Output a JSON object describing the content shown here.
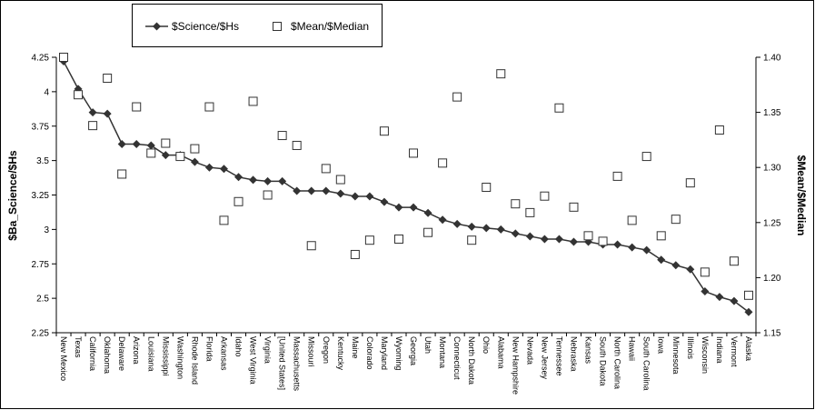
{
  "chart_data": {
    "type": "line",
    "categories": [
      "New Mexico",
      "Texas",
      "California",
      "Oklahoma",
      "Delaware",
      "Arizona",
      "Louisiana",
      "Mississippi",
      "Washington",
      "Rhode Island",
      "Florida",
      "Arkansas",
      "Idaho",
      "West Virginia",
      "Virginia",
      "[United States]",
      "Massachusetts",
      "Missouri",
      "Oregon",
      "Kentucky",
      "Maine",
      "Colorado",
      "Maryland",
      "Wyoming",
      "Georgia",
      "Utah",
      "Montana",
      "Connecticut",
      "North Dakota",
      "Ohio",
      "Alabama",
      "New Hampshire",
      "Nevada",
      "New Jersey",
      "Tennessee",
      "Nebraska",
      "Kansas",
      "South Dakota",
      "North Carolina",
      "Hawaii",
      "South Carolina",
      "Iowa",
      "Minnesota",
      "Illinois",
      "Wisconsin",
      "Indiana",
      "Vermont",
      "Alaska"
    ],
    "series": [
      {
        "name": "$Science/$Hs",
        "color": "#333333",
        "marker": "diamond",
        "line": true,
        "values": [
          4.22,
          4.02,
          3.85,
          3.84,
          3.62,
          3.62,
          3.61,
          3.54,
          3.54,
          3.49,
          3.45,
          3.44,
          3.38,
          3.36,
          3.35,
          3.35,
          3.28,
          3.28,
          3.28,
          3.26,
          3.24,
          3.24,
          3.2,
          3.16,
          3.16,
          3.12,
          3.07,
          3.04,
          3.02,
          3.01,
          3.0,
          2.97,
          2.95,
          2.93,
          2.93,
          2.91,
          2.91,
          2.89,
          2.89,
          2.87,
          2.85,
          2.78,
          2.74,
          2.71,
          2.55,
          2.51,
          2.48,
          2.4
        ]
      },
      {
        "name": "$Mean/$Median",
        "color": "#333333",
        "marker": "square",
        "line": false,
        "axis": "y2",
        "values": [
          1.4,
          1.366,
          1.338,
          1.381,
          1.294,
          1.355,
          1.313,
          1.322,
          1.31,
          1.317,
          1.355,
          1.252,
          1.269,
          1.36,
          1.275,
          1.329,
          1.32,
          1.229,
          1.299,
          1.289,
          1.221,
          1.234,
          1.333,
          1.235,
          1.313,
          1.241,
          1.304,
          1.364,
          1.234,
          1.282,
          1.385,
          1.267,
          1.259,
          1.274,
          1.354,
          1.264,
          1.238,
          1.233,
          1.292,
          1.252,
          1.31,
          1.238,
          1.253,
          1.286,
          1.205,
          1.334,
          1.215,
          1.184
        ]
      }
    ],
    "y_label": "$Ba_Science/$Hs",
    "y2_label": "$Mean/$Median",
    "ylim": [
      2.25,
      4.25
    ],
    "yticks": [
      2.25,
      2.5,
      2.75,
      3,
      3.25,
      3.5,
      3.75,
      4,
      4.25
    ],
    "y2lim": [
      1.15,
      1.4
    ],
    "y2ticks": [
      {
        "value": 1.4,
        "label": "1.40"
      },
      1.35,
      {
        "value": 1.3,
        "label": "1.30"
      },
      1.25,
      {
        "value": 1.2,
        "label": "1.20"
      },
      1.15
    ],
    "grid": false
  }
}
